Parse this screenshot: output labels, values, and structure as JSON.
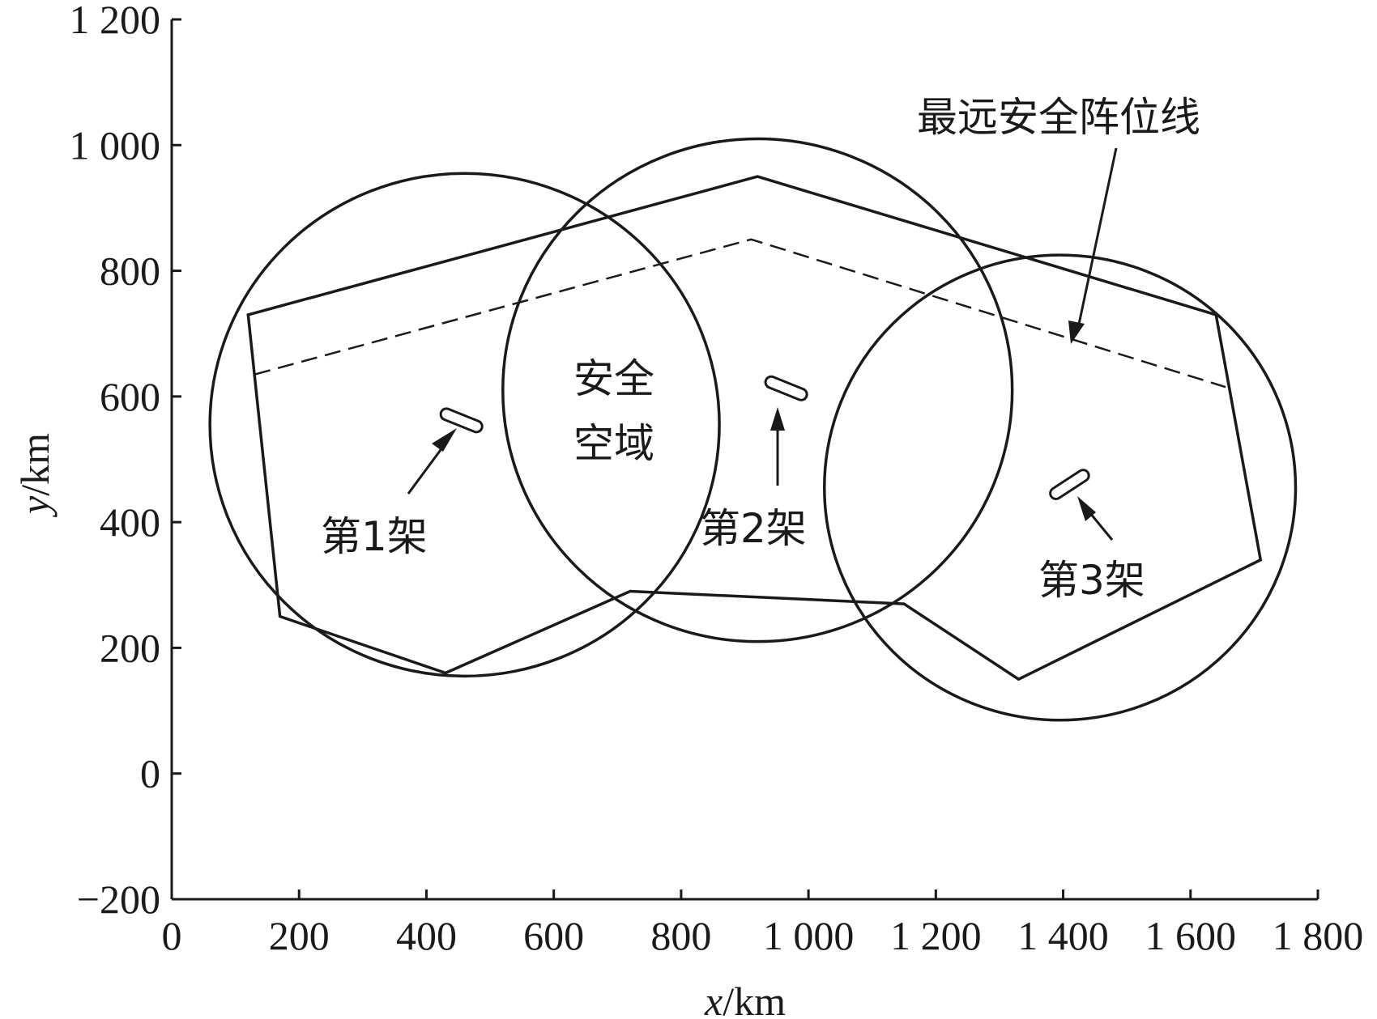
{
  "chart_data": {
    "type": "line",
    "xlabel_var": "x",
    "xlabel_unit": "/km",
    "ylabel_var": "y",
    "ylabel_unit": "/km",
    "xlim": [
      0,
      1800
    ],
    "ylim": [
      -200,
      1200
    ],
    "xticks": [
      0,
      200,
      400,
      600,
      800,
      1000,
      1200,
      1400,
      1600,
      1800
    ],
    "xtick_labels": [
      "0",
      "200",
      "400",
      "600",
      "800",
      "1 000",
      "1 200",
      "1 400",
      "1 600",
      "1 800"
    ],
    "yticks": [
      -200,
      0,
      200,
      400,
      600,
      800,
      1000,
      1200
    ],
    "ytick_labels": [
      "−200",
      "0",
      "200",
      "400",
      "600",
      "800",
      "1 000",
      "1 200"
    ],
    "grid": false,
    "safe_zone_polygon": [
      [
        120,
        730
      ],
      [
        920,
        950
      ],
      [
        1640,
        730
      ],
      [
        1710,
        340
      ],
      [
        1330,
        150
      ],
      [
        1150,
        270
      ],
      [
        720,
        290
      ],
      [
        430,
        160
      ],
      [
        170,
        250
      ]
    ],
    "circles": [
      {
        "cx": 460,
        "cy": 555,
        "r": 400
      },
      {
        "cx": 920,
        "cy": 610,
        "r": 400
      },
      {
        "cx": 1395,
        "cy": 455,
        "r": 370
      }
    ],
    "farthest_line": [
      [
        130,
        635
      ],
      [
        910,
        850
      ],
      [
        1655,
        615
      ]
    ],
    "aircraft": [
      {
        "label": "第1架",
        "x": 455,
        "y": 562,
        "angle_deg": -22
      },
      {
        "label": "第2架",
        "x": 965,
        "y": 613,
        "angle_deg": -22
      },
      {
        "label": "第3架",
        "x": 1410,
        "y": 460,
        "angle_deg": 33
      }
    ],
    "annotations": {
      "farthest_line_label": "最远安全阵位线",
      "safe_zone_line1": "安全",
      "safe_zone_line2": "空域"
    }
  }
}
